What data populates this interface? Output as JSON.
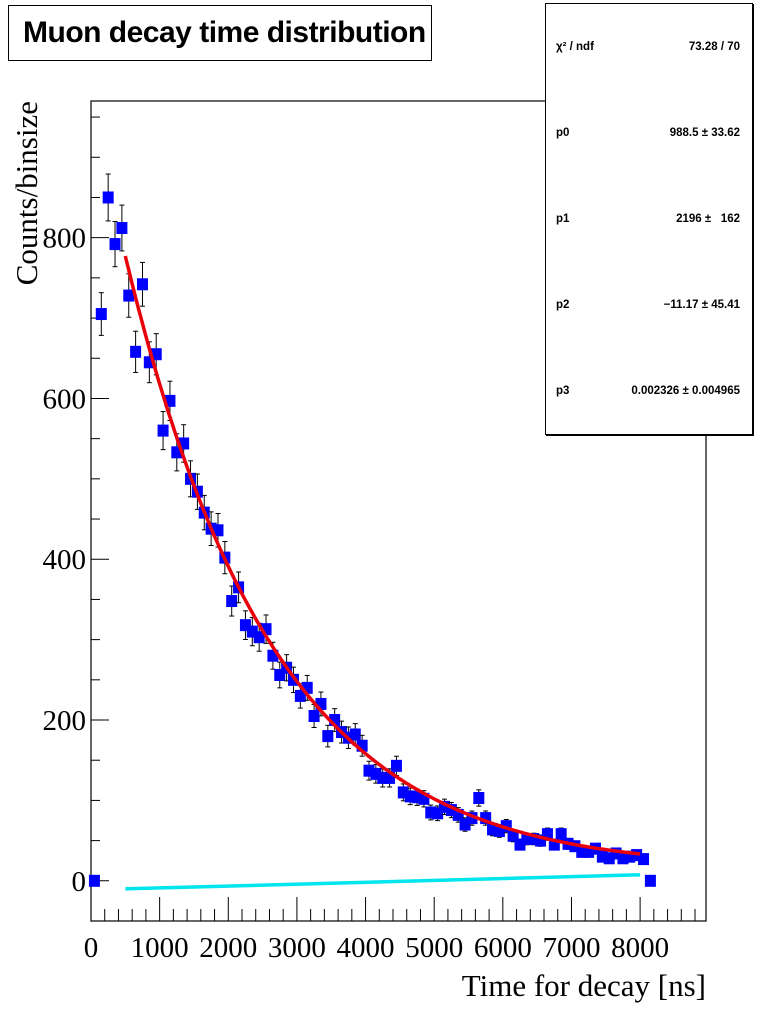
{
  "title": "Muon decay time distribution",
  "stats": {
    "rows": [
      {
        "label": "χ² / ndf",
        "value": "73.28 / 70"
      },
      {
        "label": "p0",
        "value": "988.5 ± 33.62"
      },
      {
        "label": "p1",
        "value": "2196 ±   162"
      },
      {
        "label": "p2",
        "value": "−11.17 ± 45.41"
      },
      {
        "label": "p3",
        "value": "0.002326 ± 0.004965"
      }
    ]
  },
  "chart_data": {
    "type": "scatter",
    "title": "Muon decay time distribution",
    "xlabel": "Time for decay [ns]",
    "ylabel": "Counts/binsize",
    "xlim": [
      0,
      8960
    ],
    "ylim": [
      -50,
      970
    ],
    "xticks": [
      "0",
      "1000",
      "2000",
      "3000",
      "4000",
      "5000",
      "6000",
      "7000",
      "8000"
    ],
    "yticks": [
      "0",
      "200",
      "400",
      "600",
      "800"
    ],
    "grid": false,
    "colors": {
      "points": "#0000ff",
      "fit": "#e8000b",
      "background_line": "#00e5ee",
      "error_bars": "#000000"
    },
    "series": [
      {
        "x": [
          50,
          150,
          250,
          350,
          450,
          550,
          650,
          750,
          850,
          950,
          1050,
          1150,
          1250,
          1350,
          1450,
          1550,
          1650,
          1750,
          1850,
          1950,
          2050,
          2150,
          2250,
          2350,
          2450,
          2550,
          2650,
          2750,
          2850,
          2950,
          3050,
          3150,
          3250,
          3350,
          3450,
          3550,
          3650,
          3750,
          3850,
          3950,
          4050,
          4150,
          4250,
          4350,
          4450,
          4550,
          4650,
          4750,
          4850,
          4950,
          5050,
          5150,
          5250,
          5350,
          5450,
          5550,
          5650,
          5750,
          5850,
          5950,
          6050,
          6150,
          6250,
          6350,
          6450,
          6550,
          6650,
          6750,
          6850,
          6950,
          7050,
          7150,
          7250,
          7350,
          7450,
          7550,
          7650,
          7750,
          7850,
          7950,
          8050,
          8150
        ],
        "y": [
          0,
          705,
          850,
          792,
          812,
          728,
          658,
          742,
          645,
          655,
          560,
          597,
          533,
          544,
          500,
          484,
          458,
          438,
          436,
          402,
          348,
          365,
          318,
          310,
          303,
          313,
          280,
          256,
          265,
          250,
          230,
          240,
          205,
          220,
          180,
          200,
          185,
          178,
          182,
          168,
          137,
          133,
          128,
          128,
          143,
          110,
          105,
          104,
          102,
          85,
          84,
          92,
          88,
          82,
          70,
          78,
          103,
          78,
          64,
          62,
          68,
          56,
          45,
          52,
          52,
          50,
          58,
          45,
          58,
          46,
          43,
          36,
          36,
          40,
          30,
          28,
          34,
          28,
          30,
          32,
          27,
          0
        ]
      }
    ],
    "fit": {
      "function": "p0*exp(-x/p1) + p2 + p3*x",
      "p0": 988.5,
      "p1": 2196,
      "p2": -11.17,
      "p3": 0.002326,
      "range": [
        500,
        8000
      ]
    }
  }
}
